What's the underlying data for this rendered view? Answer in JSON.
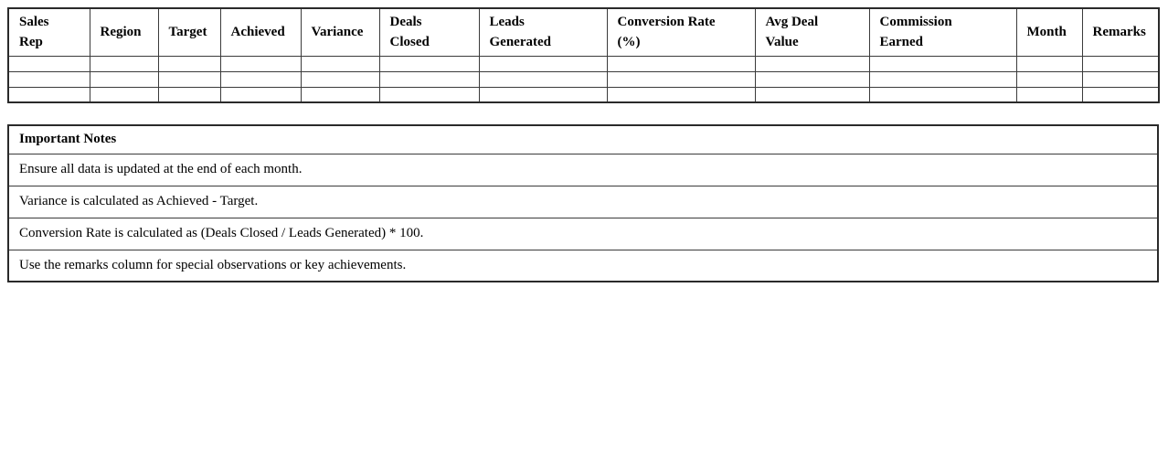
{
  "page": {
    "background_color": "#ffffff",
    "text_color": "#000000",
    "inner_border_color": "#3b3b3b",
    "outer_border_color": "#2a2a2a"
  },
  "sales_table": {
    "columns": [
      "Sales\nRep",
      "Region",
      "Target",
      "Achieved",
      "Variance",
      "Deals\nClosed",
      "Leads\nGenerated",
      "Conversion Rate\n(%)",
      "Avg Deal\nValue",
      "Commission\nEarned",
      "Month",
      "Remarks"
    ],
    "empty_row_count": 3
  },
  "notes": {
    "title": "Important Notes",
    "items": [
      "Ensure all data is updated at the end of each month.",
      "Variance is calculated as Achieved - Target.",
      "Conversion Rate is calculated as (Deals Closed / Leads Generated) * 100.",
      "Use the remarks column for special observations or key achievements."
    ]
  }
}
